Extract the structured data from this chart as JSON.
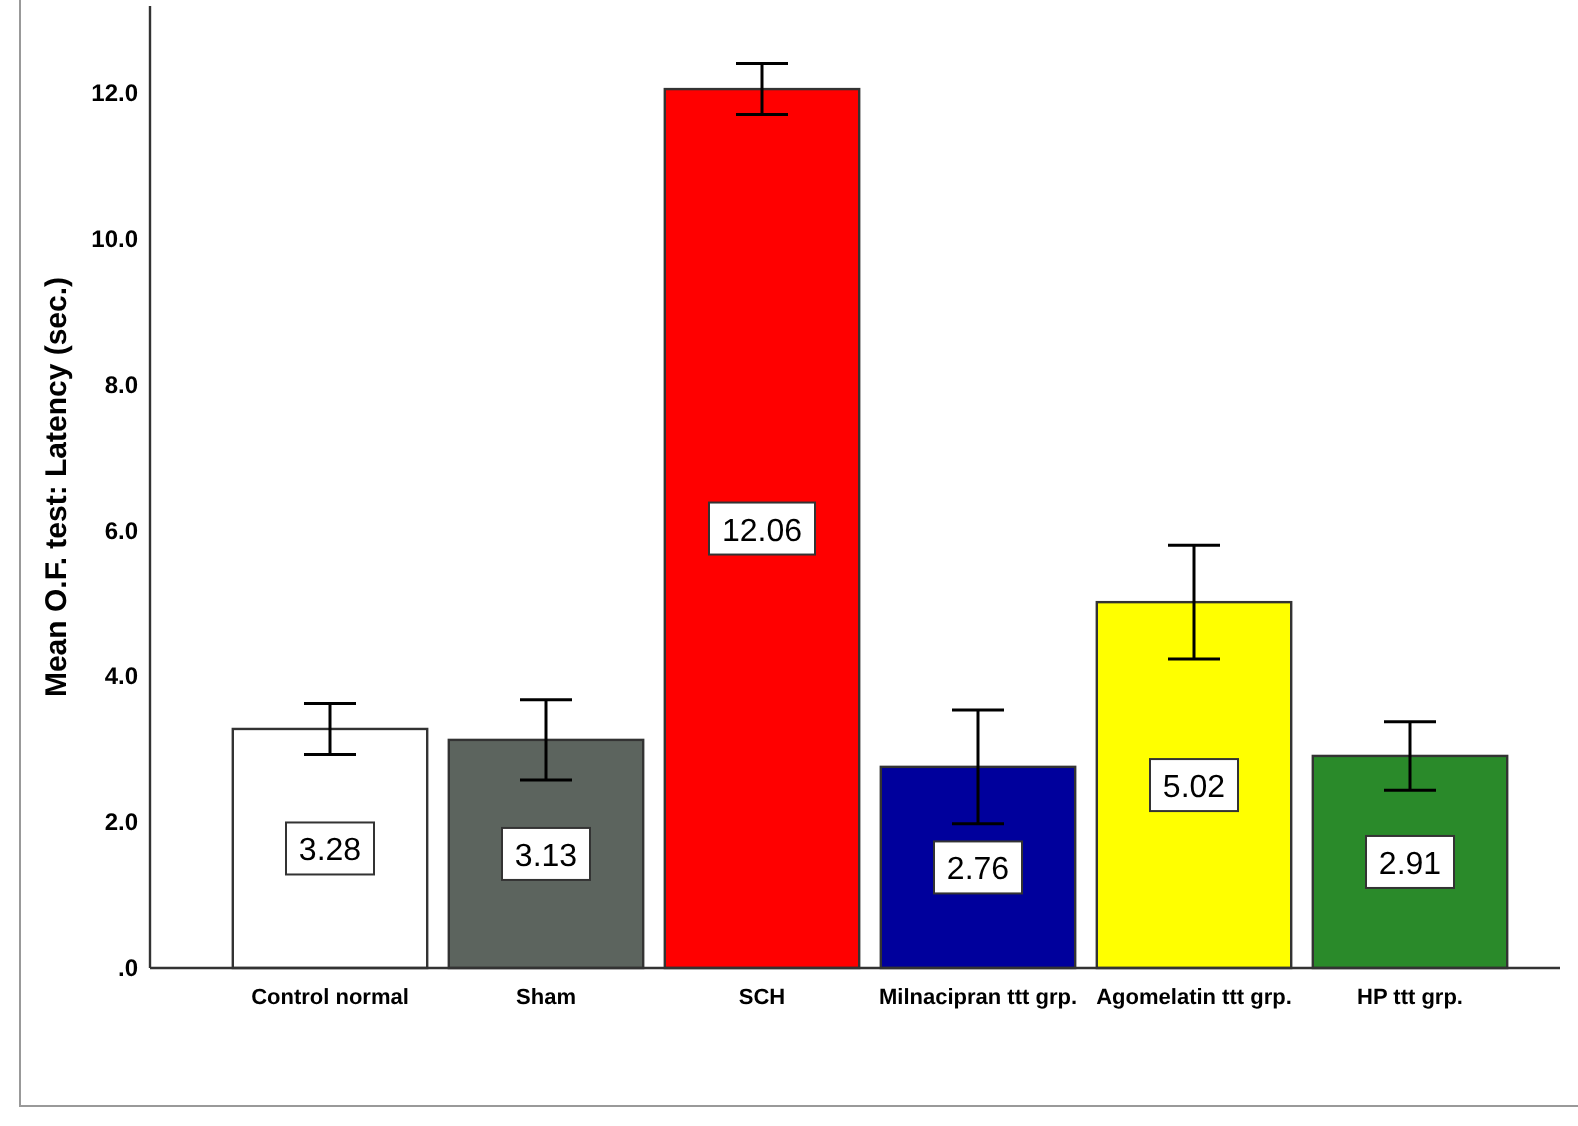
{
  "chart_data": {
    "type": "bar",
    "ylabel": "Mean O.F. test: Latency (sec.)",
    "categories": [
      "Control normal",
      "Sham",
      "SCH",
      "Milnacipran ttt grp.",
      "Agomelatin ttt grp.",
      "HP ttt grp."
    ],
    "values": [
      3.28,
      3.13,
      12.06,
      2.76,
      5.02,
      2.91
    ],
    "colors": [
      "#ffffff",
      "#5c645e",
      "#ff0000",
      "#00009c",
      "#ffff00",
      "#2a8a2a"
    ],
    "errors": [
      0.35,
      0.55,
      0.35,
      0.78,
      0.78,
      0.47
    ],
    "ylim": [
      0,
      13.2
    ],
    "yticks": [
      {
        "value": 0,
        "label": ".0"
      },
      {
        "value": 2,
        "label": "2.0"
      },
      {
        "value": 4,
        "label": "4.0"
      },
      {
        "value": 6,
        "label": "6.0"
      },
      {
        "value": 8,
        "label": "8.0"
      },
      {
        "value": 10,
        "label": "10.0"
      },
      {
        "value": 12,
        "label": "12.0"
      }
    ],
    "data_labels": true
  }
}
